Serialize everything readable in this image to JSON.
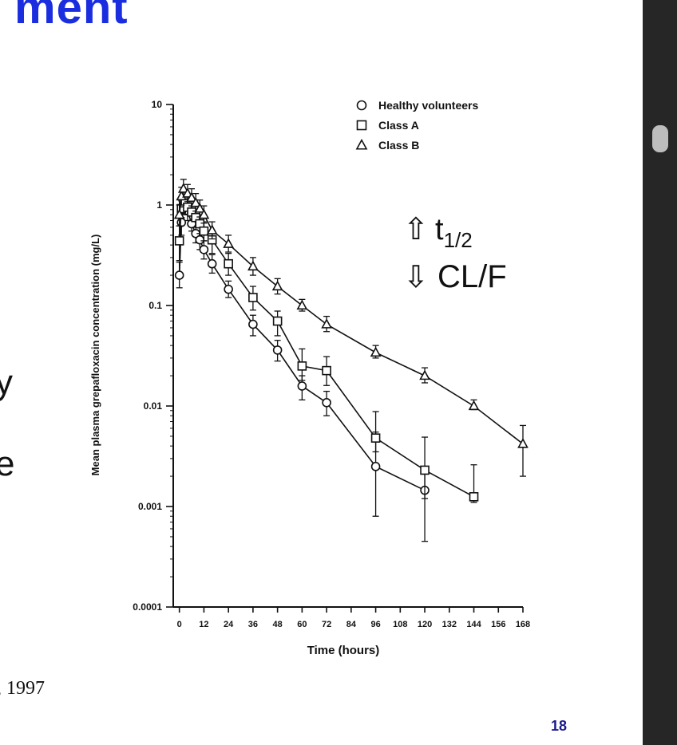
{
  "slide": {
    "title_fragment": "ment",
    "body_fragment_1": "y",
    "body_fragment_2": "e",
    "citation": ", 1997",
    "page_number": "18"
  },
  "annotation": {
    "up_arrow": "⇧",
    "down_arrow": "⇩",
    "t_base": "t",
    "t_sub": "1/2",
    "clf": "CL/F"
  },
  "chart_data": {
    "type": "scatter",
    "xlabel": "Time (hours)",
    "ylabel": "Mean plasma grepafloxacin concentration (mg/L)",
    "yscale": "log",
    "ylim": [
      0.0001,
      10
    ],
    "xlim": [
      -3,
      168
    ],
    "yticks": [
      10,
      1,
      0.1,
      0.01,
      0.001,
      0.0001
    ],
    "ytick_labels": [
      "10",
      "1",
      "0.1",
      "0.01",
      "0.001",
      "0.0001"
    ],
    "xticks": [
      0,
      12,
      24,
      36,
      48,
      60,
      72,
      84,
      96,
      108,
      120,
      132,
      144,
      156,
      168
    ],
    "xtick_labels": [
      "0",
      "12",
      "24",
      "36",
      "48",
      "60",
      "72",
      "84",
      "96",
      "108",
      "120",
      "132",
      "144",
      "156",
      "168"
    ],
    "legend_position": "top-right",
    "series": [
      {
        "name": "Healthy volunteers",
        "marker": "circle",
        "x": [
          0,
          1,
          2,
          4,
          6,
          8,
          10,
          12,
          16,
          24,
          36,
          48,
          60,
          72,
          96,
          120
        ],
        "y": [
          0.2,
          0.67,
          0.98,
          0.88,
          0.65,
          0.52,
          0.45,
          0.36,
          0.26,
          0.145,
          0.065,
          0.036,
          0.0158,
          0.0108,
          0.0025,
          0.00145
        ],
        "err_low": [
          0.15,
          0.5,
          0.8,
          0.7,
          0.55,
          0.42,
          0.36,
          0.29,
          0.21,
          0.12,
          0.05,
          0.028,
          0.0115,
          0.008,
          0.0008,
          0.00045
        ],
        "err_high": [
          0.27,
          0.83,
          1.15,
          1.05,
          0.78,
          0.63,
          0.55,
          0.44,
          0.32,
          0.175,
          0.08,
          0.045,
          0.02,
          0.014,
          0.0055,
          0.0025
        ]
      },
      {
        "name": "Class A",
        "marker": "square",
        "x": [
          0,
          1,
          2,
          4,
          6,
          8,
          10,
          12,
          16,
          24,
          36,
          48,
          60,
          72,
          96,
          120,
          144
        ],
        "y": [
          0.44,
          0.92,
          1.05,
          0.95,
          0.85,
          0.75,
          0.65,
          0.55,
          0.45,
          0.26,
          0.12,
          0.07,
          0.025,
          0.0225,
          0.0048,
          0.0023,
          0.00125
        ],
        "err_low": [
          0.28,
          0.75,
          0.88,
          0.8,
          0.7,
          0.6,
          0.52,
          0.44,
          0.33,
          0.2,
          0.09,
          0.05,
          0.018,
          0.016,
          0.0035,
          0.0012,
          0.0011
        ],
        "err_high": [
          0.62,
          1.1,
          1.25,
          1.12,
          1.02,
          0.9,
          0.8,
          0.68,
          0.56,
          0.33,
          0.155,
          0.088,
          0.037,
          0.031,
          0.0088,
          0.0049,
          0.0026
        ]
      },
      {
        "name": "Class B",
        "marker": "triangle",
        "x": [
          0,
          1,
          2,
          4,
          6,
          8,
          10,
          12,
          16,
          24,
          36,
          48,
          60,
          72,
          96,
          120,
          144,
          168
        ],
        "y": [
          0.8,
          1.22,
          1.45,
          1.3,
          1.18,
          1.05,
          0.92,
          0.8,
          0.56,
          0.41,
          0.245,
          0.155,
          0.1,
          0.065,
          0.034,
          0.02,
          0.01,
          0.0042
        ],
        "err_low": [
          0.62,
          1.0,
          1.2,
          1.08,
          0.98,
          0.87,
          0.76,
          0.66,
          0.46,
          0.34,
          0.2,
          0.13,
          0.088,
          0.055,
          0.03,
          0.017,
          0.0092,
          0.002
        ],
        "err_high": [
          1.0,
          1.5,
          1.8,
          1.6,
          1.45,
          1.3,
          1.12,
          0.98,
          0.68,
          0.5,
          0.3,
          0.185,
          0.115,
          0.078,
          0.04,
          0.024,
          0.0115,
          0.0064
        ]
      }
    ]
  }
}
